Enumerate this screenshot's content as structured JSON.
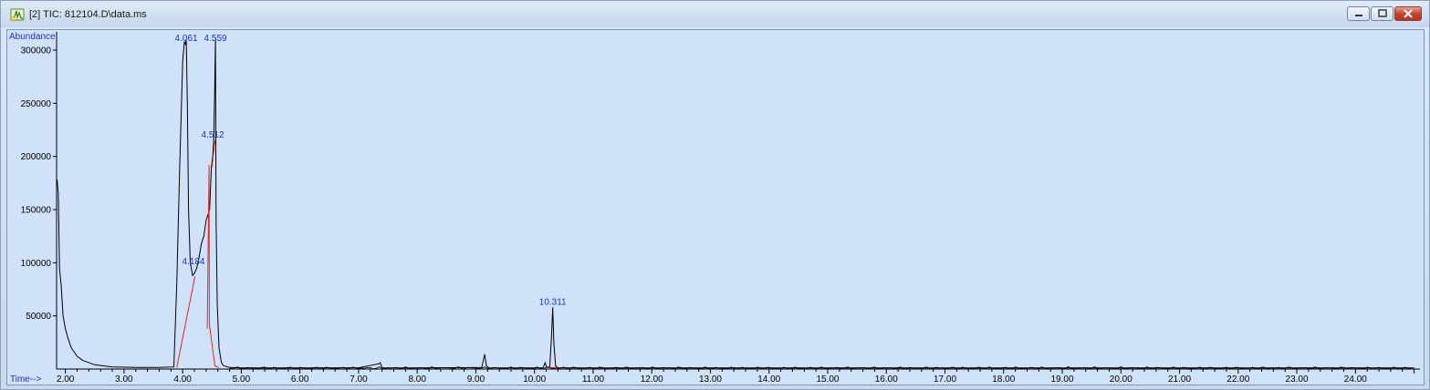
{
  "window": {
    "title": "[2] TIC: 812104.D\\data.ms",
    "icon": "chromatogram-app-icon",
    "buttons": [
      "minimize-icon",
      "restore-icon",
      "close-icon"
    ]
  },
  "colors": {
    "plot_bg": "#d0e1fa",
    "trace": "#000000",
    "baseline": "#e8261c",
    "label": "#1a32c8"
  },
  "chart_data": {
    "type": "line",
    "ylabel": "Abundance",
    "xlabel": "Time-->",
    "xlim": [
      1.85,
      25.1
    ],
    "ylim": [
      0,
      312000
    ],
    "yticks": [
      50000,
      100000,
      150000,
      200000,
      250000,
      300000
    ],
    "ytick_labels": [
      "50000",
      "100000",
      "150000",
      "200000",
      "250000",
      "300000"
    ],
    "xticks": [
      2,
      3,
      4,
      5,
      6,
      7,
      8,
      9,
      10,
      11,
      12,
      13,
      14,
      15,
      16,
      17,
      18,
      19,
      20,
      21,
      22,
      23,
      24
    ],
    "xtick_labels": [
      "2.00",
      "3.00",
      "4.00",
      "5.00",
      "6.00",
      "7.00",
      "8.00",
      "9.00",
      "10.00",
      "11.00",
      "12.00",
      "13.00",
      "14.00",
      "15.00",
      "16.00",
      "17.00",
      "18.00",
      "19.00",
      "20.00",
      "21.00",
      "22.00",
      "23.00",
      "24.00"
    ],
    "series": [
      {
        "x": [
          1.86,
          1.88,
          1.9,
          1.93,
          1.96,
          2.0,
          2.05,
          2.1,
          2.2,
          2.3,
          2.5,
          2.8,
          3.2,
          3.6,
          3.85,
          3.9,
          3.95,
          4.0,
          4.03,
          4.05,
          4.061,
          4.08,
          4.1,
          4.13,
          4.17,
          4.2,
          4.24,
          4.28,
          4.32,
          4.36,
          4.4,
          4.43,
          4.46,
          4.49,
          4.512,
          4.53,
          4.545,
          4.559,
          4.57,
          4.59,
          4.62,
          4.66,
          4.7,
          4.8,
          5.0,
          6.0,
          7.0,
          7.35,
          7.37,
          7.4,
          8.0,
          9.1,
          9.15,
          9.18,
          9.22,
          10.0,
          10.15,
          10.18,
          10.21,
          10.26,
          10.29,
          10.311,
          10.33,
          10.36,
          10.4,
          11.0,
          13.0,
          15.0,
          17.0,
          19.0,
          21.0,
          23.0,
          25.0
        ],
        "y": [
          178000,
          165000,
          95000,
          78000,
          50000,
          38000,
          28000,
          20000,
          12000,
          8000,
          4000,
          2000,
          1500,
          1500,
          2000,
          80000,
          190000,
          290000,
          308000,
          305000,
          310000,
          250000,
          150000,
          100000,
          88000,
          90000,
          95000,
          105000,
          118000,
          125000,
          140000,
          145000,
          150000,
          190000,
          200000,
          215000,
          260000,
          310000,
          140000,
          60000,
          20000,
          6000,
          3000,
          1500,
          1000,
          1000,
          1200,
          5000,
          6000,
          1200,
          1000,
          1500,
          14000,
          3000,
          1200,
          1000,
          1200,
          6000,
          1500,
          2000,
          30000,
          58000,
          25000,
          3000,
          1200,
          1000,
          1000,
          1000,
          1000,
          1000,
          1000,
          1000,
          1000
        ]
      }
    ],
    "baselines": [
      {
        "x": [
          3.9,
          4.21
        ],
        "y": [
          1500,
          87000
        ]
      },
      {
        "x": [
          4.42,
          4.45,
          4.455
        ],
        "y": [
          38000,
          192000,
          42000
        ]
      },
      {
        "x": [
          4.455,
          4.55,
          4.62
        ],
        "y": [
          42000,
          3000,
          1500
        ]
      },
      {
        "x": [
          4.5,
          4.55
        ],
        "y": [
          190000,
          215000
        ]
      },
      {
        "x": [
          10.26,
          10.38
        ],
        "y": [
          1500,
          1500
        ]
      }
    ],
    "annotations": [
      {
        "label": "4.061",
        "x": 4.061,
        "y": 310000
      },
      {
        "label": "4.559",
        "x": 4.559,
        "y": 310000
      },
      {
        "label": "4.512",
        "x": 4.512,
        "y": 215000
      },
      {
        "label": "4.184",
        "x": 4.184,
        "y": 96000
      },
      {
        "label": "10.311",
        "x": 10.311,
        "y": 58000
      }
    ]
  }
}
